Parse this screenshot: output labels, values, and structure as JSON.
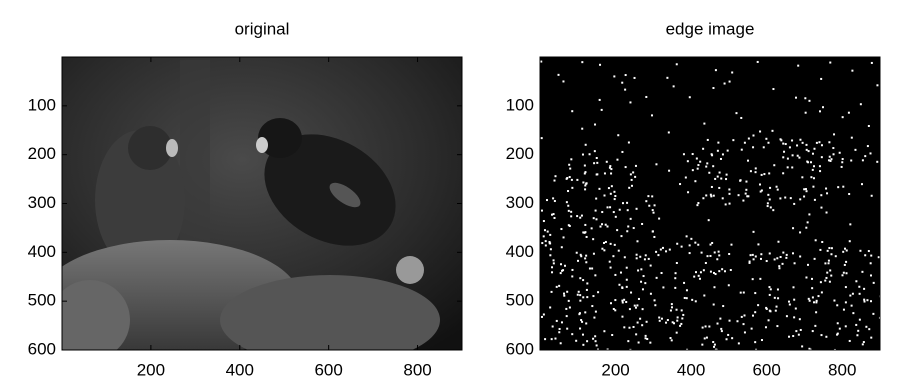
{
  "chart_data": [
    {
      "type": "image",
      "title": "original",
      "xlim": [
        0,
        900
      ],
      "ylim": [
        0,
        600
      ],
      "y_reversed": true,
      "xticks": [
        200,
        400,
        600,
        800
      ],
      "yticks": [
        100,
        200,
        300,
        400,
        500,
        600
      ]
    },
    {
      "type": "edge-image",
      "title": "edge image",
      "xlim": [
        0,
        900
      ],
      "ylim": [
        0,
        600
      ],
      "y_reversed": true,
      "xticks": [
        200,
        400,
        600,
        800
      ],
      "yticks": [
        100,
        200,
        300,
        400,
        500,
        600
      ]
    }
  ]
}
